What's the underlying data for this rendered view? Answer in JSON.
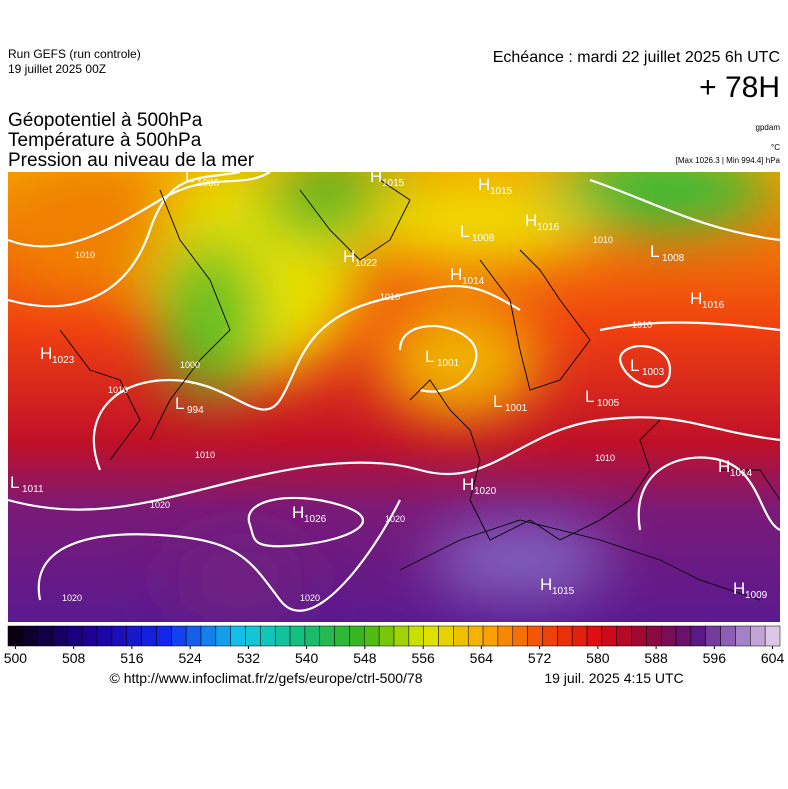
{
  "header": {
    "run": "Run GEFS (run controle)",
    "run_date": "19 juillet 2025 00Z",
    "valid": "Echéance : mardi 22 juillet 2025 6h UTC",
    "lead": "+ 78H"
  },
  "titles": [
    "Géopotentiel à 500hPa",
    "Température à 500hPa",
    "Pression au niveau de la mer"
  ],
  "units": {
    "geopotential": "gpdam",
    "temperature": "°C",
    "pressure": "[Max 1026.3 | Min 994.4] hPa"
  },
  "centers": [
    {
      "kind": "L",
      "value": 1006
    },
    {
      "kind": "H",
      "value": 1015
    },
    {
      "kind": "H",
      "value": 1015
    },
    {
      "kind": "L",
      "value": 1008
    },
    {
      "kind": "H",
      "value": 1016
    },
    {
      "kind": "H",
      "value": 1022
    },
    {
      "kind": "L",
      "value": 1008
    },
    {
      "kind": "H",
      "value": 1014
    },
    {
      "kind": "H",
      "value": 1016
    },
    {
      "kind": "H",
      "value": 1023
    },
    {
      "kind": "L",
      "value": 1001
    },
    {
      "kind": "L",
      "value": 1003
    },
    {
      "kind": "L",
      "value": 1001
    },
    {
      "kind": "L",
      "value": 1005
    },
    {
      "kind": "L",
      "value": 994
    },
    {
      "kind": "L",
      "value": 1011
    },
    {
      "kind": "H",
      "value": 1014
    },
    {
      "kind": "H",
      "value": 1020
    },
    {
      "kind": "H",
      "value": 1026
    },
    {
      "kind": "H",
      "value": 1015
    },
    {
      "kind": "H",
      "value": 1009
    }
  ],
  "isobar_labels": [
    1010,
    1020,
    1020,
    1020,
    1020,
    1010,
    1010,
    1010,
    1010,
    1010,
    1000,
    1010
  ],
  "colorbar": {
    "range": [
      500,
      604
    ],
    "ticks": [
      500,
      508,
      516,
      524,
      532,
      540,
      548,
      556,
      564,
      572,
      580,
      588,
      596,
      604
    ]
  },
  "footer": {
    "source": "© http://www.infoclimat.fr/z/gefs/europe/ctrl-500/78",
    "generated": "19 juil. 2025  4:15 UTC"
  }
}
